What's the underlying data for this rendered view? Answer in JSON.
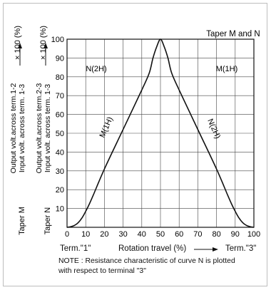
{
  "chart_data": {
    "type": "line",
    "header": "Taper M and N",
    "xlim": [
      0,
      100
    ],
    "ylim": [
      0,
      100
    ],
    "x_ticks": [
      "0",
      "10",
      "20",
      "30",
      "40",
      "50",
      "60",
      "70",
      "80",
      "90",
      "100"
    ],
    "y_ticks": [
      "10",
      "20",
      "30",
      "40",
      "50",
      "60",
      "70",
      "80",
      "90",
      "100"
    ],
    "grid": true,
    "left_labels": [
      {
        "taper": "Taper M",
        "line1": "Output volt.across term.1-2",
        "line2": "Input volt. across term. 1-3",
        "unit": "× 100 (%)"
      },
      {
        "taper": "Taper N",
        "line1": "Output volt.across term.2-3",
        "line2": "Input volt. across term. 1-3",
        "unit": "× 100 (%)"
      }
    ],
    "term_left": "Term.\"1\"",
    "term_right": "Term.\"3\"",
    "xlabel": "Rotation travel (%)",
    "curve_labels": {
      "top_left": "N(2H)",
      "top_right": "M(1H)",
      "rising": "M(1H)",
      "falling": "N(2H)"
    },
    "series": [
      {
        "x": [
          0,
          2,
          4,
          6,
          8,
          10,
          12,
          14,
          20,
          30,
          40,
          44,
          46,
          48,
          50,
          52,
          54,
          56,
          60,
          70,
          80,
          86,
          88,
          90,
          92,
          94,
          96,
          98,
          100
        ],
        "y": [
          0,
          0.3,
          1,
          2.5,
          5,
          8.5,
          12.5,
          17,
          31,
          52,
          73,
          82,
          90,
          96,
          100,
          96,
          90,
          82,
          73,
          52,
          31,
          17,
          12.5,
          8.5,
          5,
          2.5,
          1,
          0.3,
          0
        ]
      }
    ],
    "note_line1": "NOTE : Resistance characteristic of curve N is plotted",
    "note_line2": "with respect to terminal \"3\""
  }
}
